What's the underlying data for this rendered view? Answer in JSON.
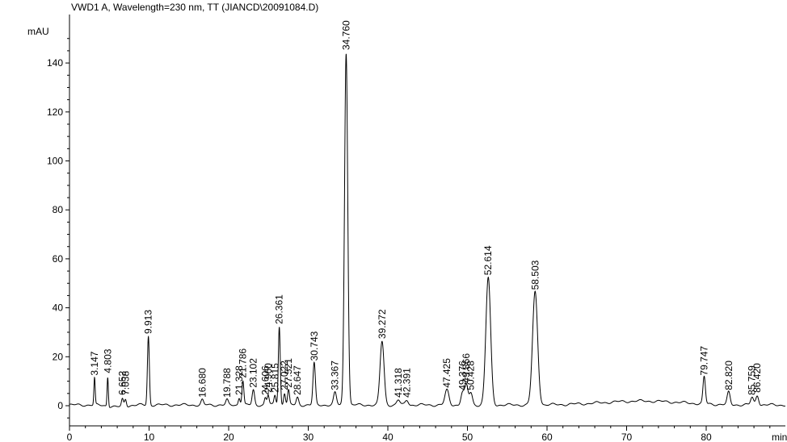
{
  "chart_data": {
    "type": "line",
    "title": "VWD1 A, Wavelength=230 nm, TT (JIANCD\\20091084.D)",
    "ylabel": "mAU",
    "xlabel": "min",
    "xlim": [
      0,
      90
    ],
    "ylim": [
      -8,
      150
    ],
    "x_ticks": [
      0,
      10,
      20,
      30,
      40,
      50,
      60,
      70,
      80
    ],
    "y_ticks": [
      0,
      20,
      40,
      60,
      80,
      100,
      120,
      140
    ],
    "grid": false,
    "peaks": [
      {
        "rt": 3.147,
        "label": "3.147",
        "height": 11,
        "width": 0.08
      },
      {
        "rt": 4.803,
        "label": "4.803",
        "height": 12,
        "width": 0.08
      },
      {
        "rt": 6.652,
        "label": "6.652",
        "height": 3,
        "width": 0.12
      },
      {
        "rt": 7.038,
        "label": "7.038",
        "height": 3,
        "width": 0.12
      },
      {
        "rt": 9.913,
        "label": "9.913",
        "height": 28,
        "width": 0.12
      },
      {
        "rt": 16.68,
        "label": "16.680",
        "height": 2,
        "width": 0.15
      },
      {
        "rt": 19.788,
        "label": "19.788",
        "height": 2,
        "width": 0.15
      },
      {
        "rt": 21.328,
        "label": "21.328",
        "height": 3,
        "width": 0.12
      },
      {
        "rt": 21.786,
        "label": "21.786",
        "height": 10,
        "width": 0.12
      },
      {
        "rt": 23.102,
        "label": "23.102",
        "height": 6,
        "width": 0.15
      },
      {
        "rt": 24.606,
        "label": "24.606",
        "height": 3,
        "width": 0.12
      },
      {
        "rt": 24.96,
        "label": "24.960",
        "height": 4,
        "width": 0.12
      },
      {
        "rt": 25.815,
        "label": "25.815",
        "height": 4,
        "width": 0.12
      },
      {
        "rt": 26.361,
        "label": "26.361",
        "height": 32,
        "width": 0.12
      },
      {
        "rt": 27.022,
        "label": "27.022",
        "height": 5,
        "width": 0.12
      },
      {
        "rt": 27.521,
        "label": "27.521",
        "height": 6,
        "width": 0.12
      },
      {
        "rt": 28.647,
        "label": "28.647",
        "height": 3,
        "width": 0.15
      },
      {
        "rt": 30.743,
        "label": "30.743",
        "height": 17,
        "width": 0.15
      },
      {
        "rt": 33.367,
        "label": "33.367",
        "height": 5,
        "width": 0.18
      },
      {
        "rt": 34.76,
        "label": "34.760",
        "height": 144,
        "width": 0.2
      },
      {
        "rt": 39.272,
        "label": "39.272",
        "height": 26,
        "width": 0.25
      },
      {
        "rt": 41.318,
        "label": "41.318",
        "height": 2,
        "width": 0.2
      },
      {
        "rt": 42.391,
        "label": "42.391",
        "height": 2,
        "width": 0.2
      },
      {
        "rt": 47.425,
        "label": "47.425",
        "height": 6,
        "width": 0.25
      },
      {
        "rt": 49.376,
        "label": "49.376",
        "height": 5,
        "width": 0.2
      },
      {
        "rt": 49.866,
        "label": "49.866",
        "height": 8,
        "width": 0.2
      },
      {
        "rt": 50.428,
        "label": "50.428",
        "height": 5,
        "width": 0.2
      },
      {
        "rt": 52.614,
        "label": "52.614",
        "height": 52,
        "width": 0.3
      },
      {
        "rt": 58.503,
        "label": "58.503",
        "height": 46,
        "width": 0.32
      },
      {
        "rt": 79.747,
        "label": "79.747",
        "height": 11,
        "width": 0.15
      },
      {
        "rt": 82.82,
        "label": "82.820",
        "height": 5,
        "width": 0.18
      },
      {
        "rt": 85.759,
        "label": "85.759",
        "height": 3,
        "width": 0.18
      },
      {
        "rt": 86.42,
        "label": "86.420",
        "height": 4,
        "width": 0.18
      }
    ]
  }
}
